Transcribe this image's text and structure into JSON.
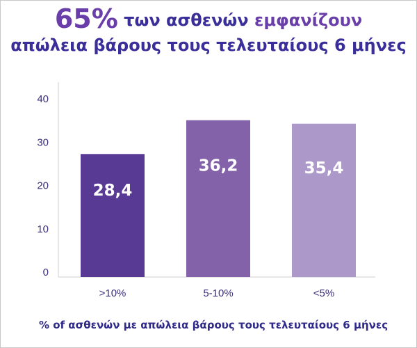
{
  "title": {
    "pct": "65%",
    "part1": " των ασθενών ",
    "part2": "εμφανίζουν",
    "line2": "απώλεια βάρους τους τελευταίους 6 μήνες"
  },
  "footnote": "% of ασθενών με απώλεια βάρους τους τελευταίους 6 μήνες",
  "chart_data": {
    "type": "bar",
    "categories": [
      ">10%",
      "5-10%",
      "<5%"
    ],
    "values": [
      28.4,
      36.2,
      35.4
    ],
    "data_labels": [
      "28,4",
      "36,2",
      "35,4"
    ],
    "colors": [
      "#583a94",
      "#8462aa",
      "#ac98c9"
    ],
    "yticks": [
      "0",
      "10",
      "20",
      "30",
      "40"
    ],
    "ylim": [
      0,
      45
    ],
    "grid": false,
    "legend": "none",
    "xlabel": "",
    "ylabel": ""
  }
}
